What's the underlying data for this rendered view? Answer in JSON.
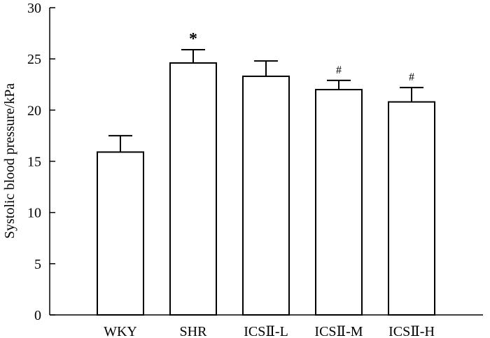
{
  "chart_data": {
    "type": "bar",
    "title": "",
    "xlabel": "",
    "ylabel": "Systolic blood pressure/kPa",
    "ylim": [
      0,
      30
    ],
    "yticks": [
      0,
      5,
      10,
      15,
      20,
      25,
      30
    ],
    "categories": [
      "WKY",
      "SHR",
      "ICSⅡ-L",
      "ICSⅡ-M",
      "ICSⅡ-H"
    ],
    "values": [
      15.9,
      24.6,
      23.3,
      22.0,
      20.8
    ],
    "errors": [
      1.6,
      1.3,
      1.5,
      0.9,
      1.4
    ],
    "annotations": [
      "",
      "*",
      "",
      "#",
      "#"
    ],
    "grid": false,
    "legend": "none",
    "colors": {
      "bar_fill": "#ffffff",
      "bar_stroke": "#000000",
      "axis": "#000000"
    }
  }
}
